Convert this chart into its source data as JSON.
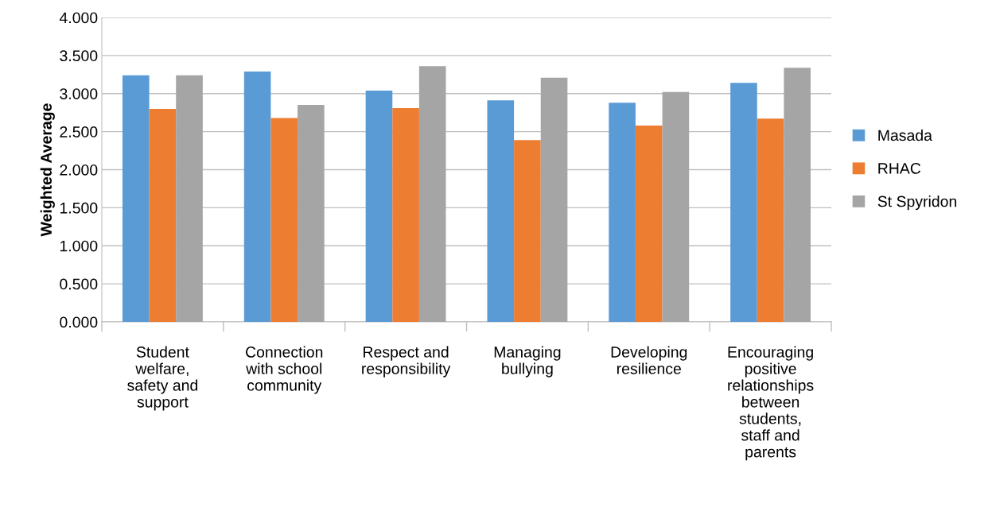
{
  "chart_data": {
    "type": "bar",
    "ylabel": "Weighted Average",
    "categories": [
      "Student welfare, safety and support",
      "Connection with school community",
      "Respect and responsibility",
      "Managing bullying",
      "Developing resilience",
      "Encouraging positive relationships between students, staff and parents"
    ],
    "series": [
      {
        "name": "Masada",
        "color": "#5b9bd5",
        "values": [
          3.24,
          3.29,
          3.04,
          2.91,
          2.88,
          3.14
        ]
      },
      {
        "name": "RHAC",
        "color": "#ed7d31",
        "values": [
          2.8,
          2.68,
          2.81,
          2.39,
          2.58,
          2.67
        ]
      },
      {
        "name": "St Spyridon",
        "color": "#a5a5a5",
        "values": [
          3.24,
          2.85,
          3.36,
          3.21,
          3.02,
          3.34
        ]
      }
    ],
    "ylim": [
      0,
      4
    ],
    "yticks": [
      {
        "value": 0,
        "label": "0.000"
      },
      {
        "value": 0.5,
        "label": "0.500"
      },
      {
        "value": 1,
        "label": "1.000"
      },
      {
        "value": 1.5,
        "label": "1.500"
      },
      {
        "value": 2,
        "label": "2.000"
      },
      {
        "value": 2.5,
        "label": "2.500"
      },
      {
        "value": 3,
        "label": "3.000"
      },
      {
        "value": 3.5,
        "label": "3.500"
      },
      {
        "value": 4,
        "label": "4.000"
      }
    ],
    "grid": "y",
    "legend": "right"
  }
}
